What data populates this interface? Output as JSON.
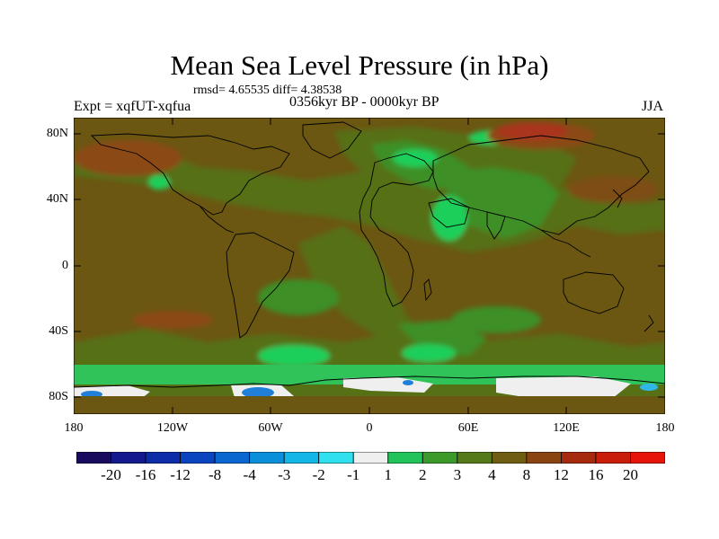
{
  "title": "Mean Sea Level Pressure (in hPa)",
  "stats": "rmsd= 4.65535 diff= 4.38538",
  "experiment": "Expt = xqfUT-xqfua",
  "period": "0356kyr BP - 0000kyr BP",
  "season": "JJA",
  "y_axis": {
    "labels": [
      "80N",
      "40N",
      "0",
      "40S",
      "80S"
    ]
  },
  "x_axis": {
    "labels": [
      "180",
      "120W",
      "60W",
      "0",
      "60E",
      "120E",
      "180"
    ]
  },
  "colorbar": {
    "labels": [
      "-20",
      "-16",
      "-12",
      "-8",
      "-4",
      "-3",
      "-2",
      "-1",
      "1",
      "2",
      "3",
      "4",
      "8",
      "12",
      "16",
      "20"
    ],
    "colors": [
      "#1a0a5e",
      "#141a8c",
      "#0d2da8",
      "#0a45bf",
      "#0a67cf",
      "#0a8fda",
      "#12b7e8",
      "#30e0ee",
      "#efefef",
      "#22c35a",
      "#3c9a2a",
      "#547a1a",
      "#6f5e12",
      "#8a4412",
      "#a52a0e",
      "#c81e0a",
      "#e61409"
    ]
  },
  "map_colors": {
    "base": "#6b5712",
    "olive": "#566f18",
    "green": "#3d8f28",
    "bright_green": "#1fcf5a",
    "brown": "#8b4a13",
    "red_brown": "#a8361c",
    "white": "#efefef",
    "blue": "#1f7fd9",
    "coast": "#000000"
  }
}
